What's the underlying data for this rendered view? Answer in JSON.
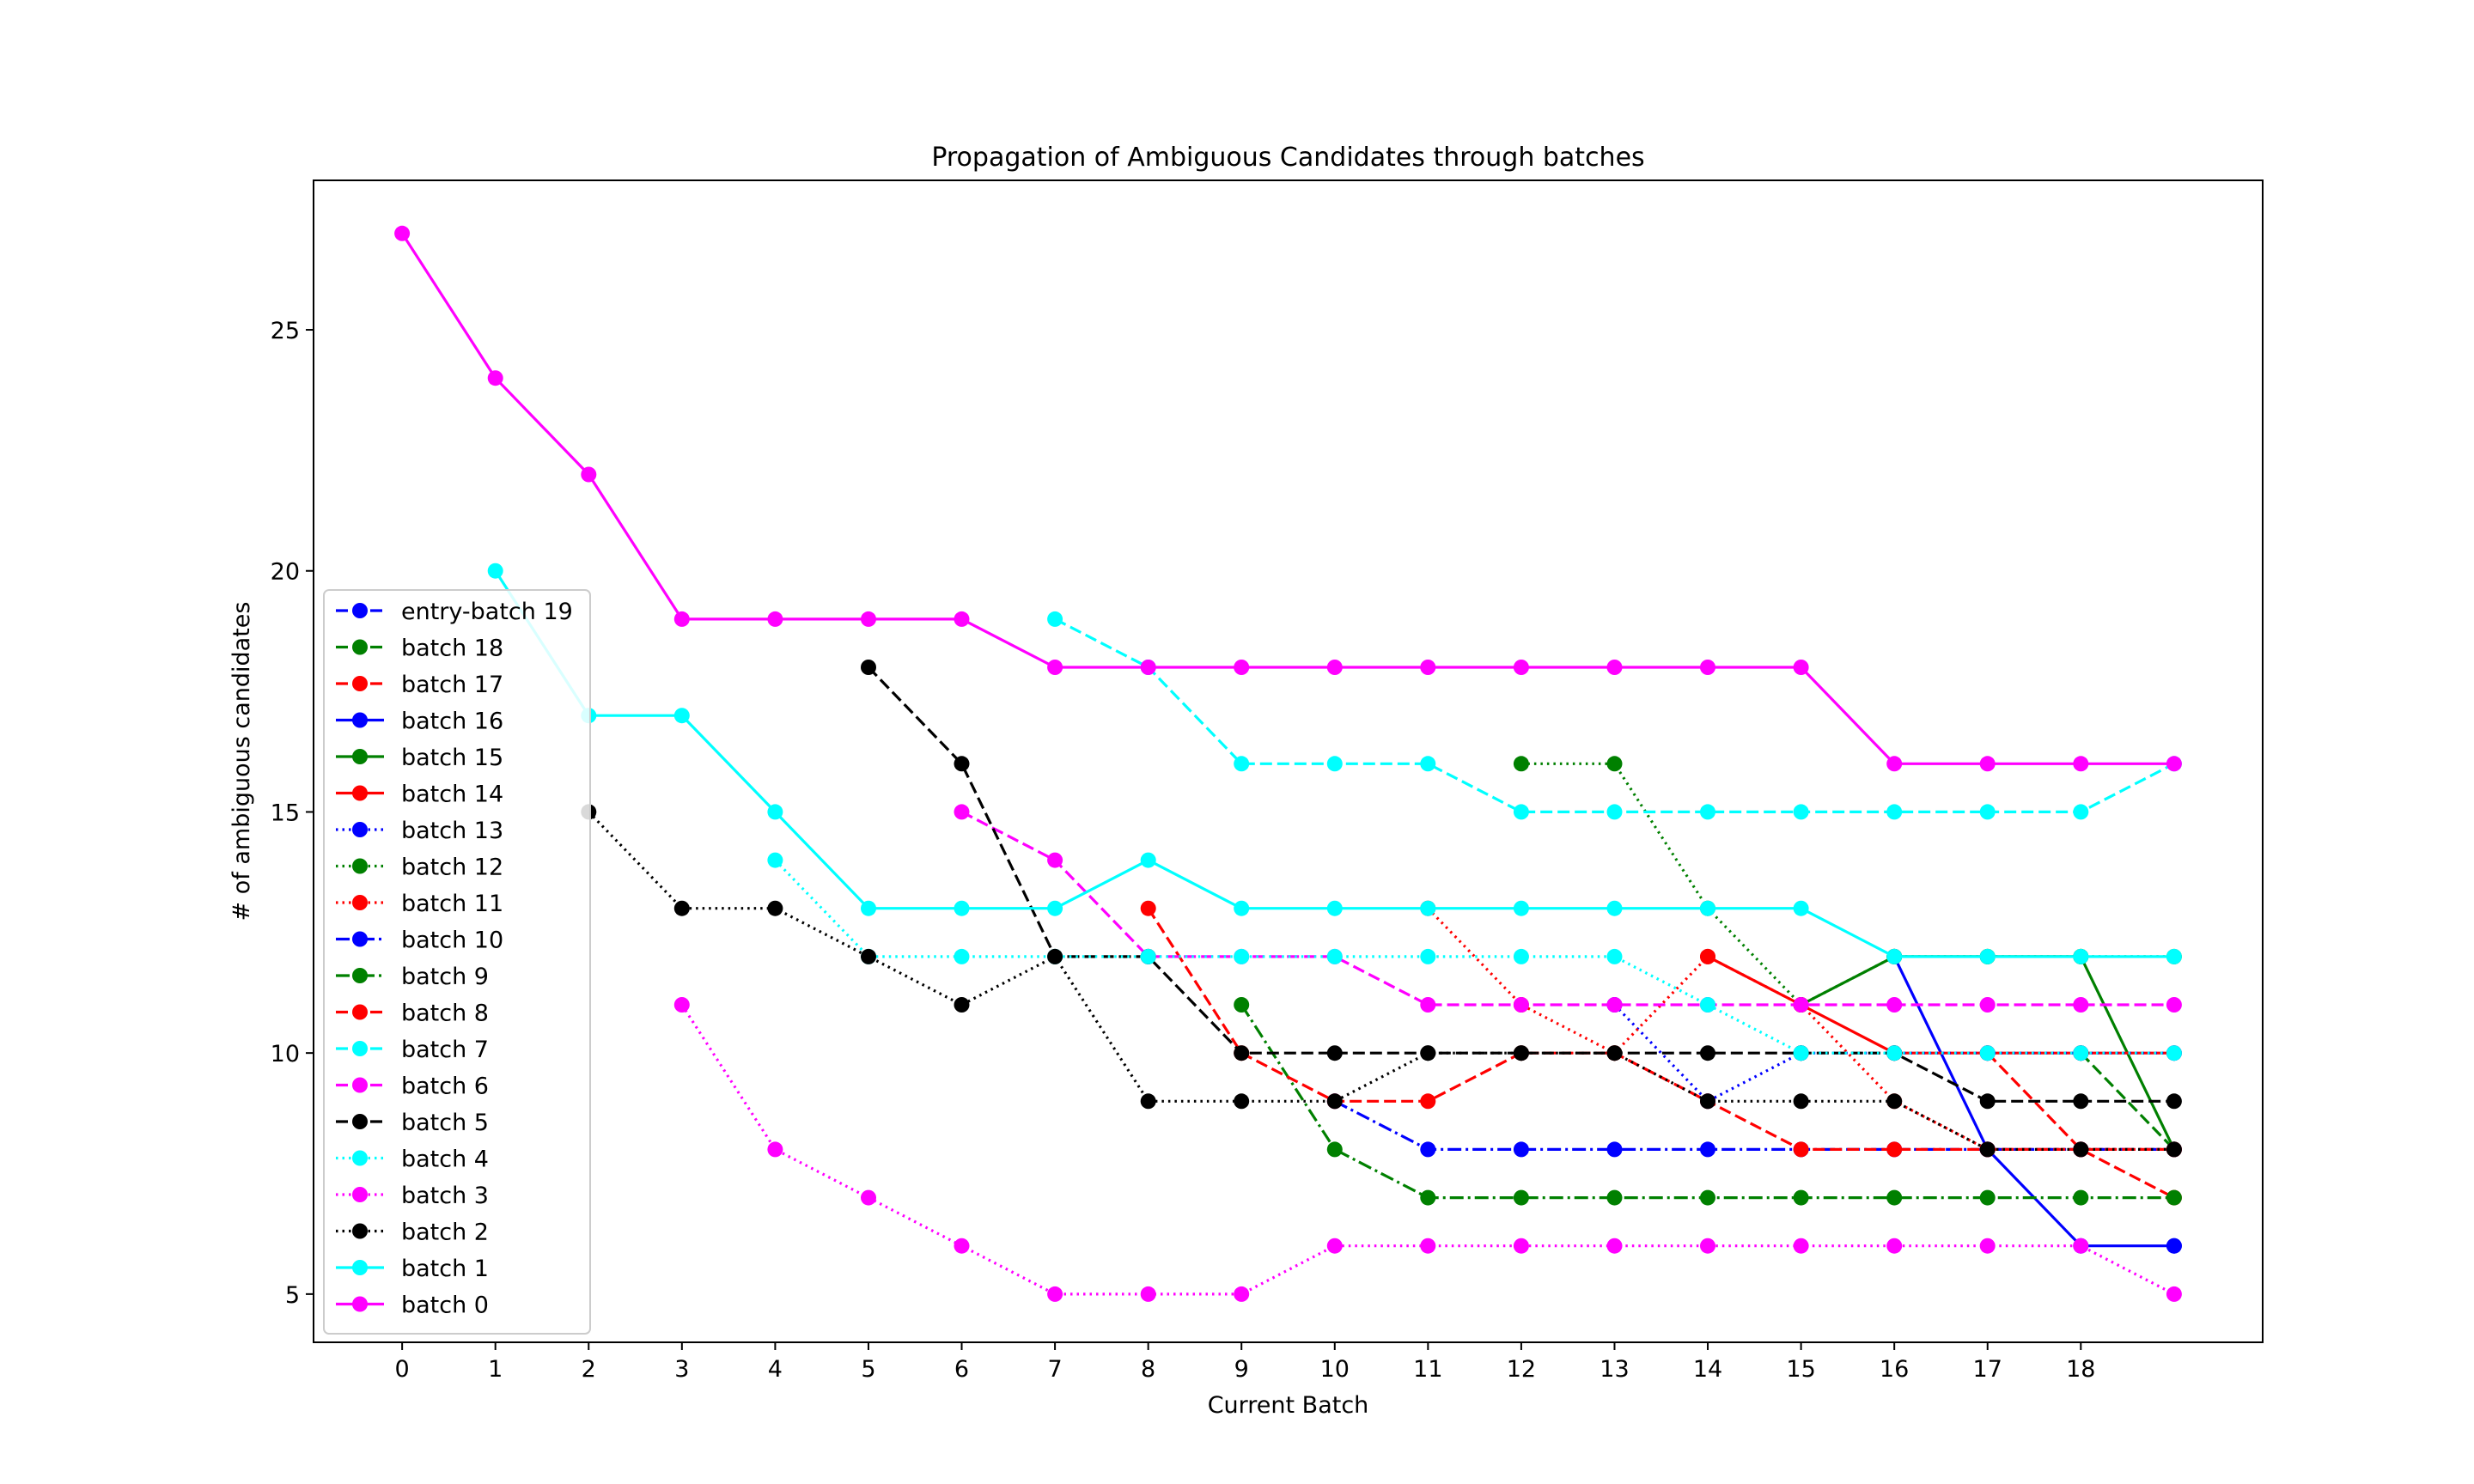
{
  "chart_data": {
    "type": "line",
    "title": "Propagation of Ambiguous Candidates through batches",
    "xlabel": "Current Batch",
    "ylabel": "# of ambiguous candidates",
    "xlim": [
      -0.95,
      19.95
    ],
    "ylim": [
      4.0,
      28.1
    ],
    "xticks": [
      0,
      1,
      2,
      3,
      4,
      5,
      6,
      7,
      8,
      9,
      10,
      11,
      12,
      13,
      14,
      15,
      16,
      17,
      18
    ],
    "yticks": [
      5,
      10,
      15,
      20,
      25
    ],
    "grid": false,
    "legend_position": "center-left",
    "series": [
      {
        "name": "entry-batch 19",
        "color": "#0000ff",
        "style": "dashed",
        "x": [
          19
        ],
        "y": [
          6
        ]
      },
      {
        "name": "batch 18",
        "color": "#008000",
        "style": "dashed",
        "x": [
          18,
          19
        ],
        "y": [
          10,
          8
        ]
      },
      {
        "name": "batch 17",
        "color": "#ff0000",
        "style": "dashed",
        "x": [
          17,
          18,
          19
        ],
        "y": [
          10,
          8,
          7
        ]
      },
      {
        "name": "batch 16",
        "color": "#0000ff",
        "style": "solid",
        "x": [
          16,
          17,
          18,
          19
        ],
        "y": [
          12,
          8,
          6,
          6
        ]
      },
      {
        "name": "batch 15",
        "color": "#008000",
        "style": "solid",
        "x": [
          15,
          16,
          17,
          18,
          19
        ],
        "y": [
          11,
          12,
          12,
          12,
          8
        ]
      },
      {
        "name": "batch 14",
        "color": "#ff0000",
        "style": "solid",
        "x": [
          14,
          15,
          16,
          17,
          18,
          19
        ],
        "y": [
          12,
          11,
          10,
          10,
          10,
          10
        ]
      },
      {
        "name": "batch 13",
        "color": "#0000ff",
        "style": "dotted",
        "x": [
          13,
          14,
          15,
          16,
          17,
          18,
          19
        ],
        "y": [
          11,
          9,
          10,
          10,
          10,
          10,
          10
        ]
      },
      {
        "name": "batch 12",
        "color": "#008000",
        "style": "dotted",
        "x": [
          12,
          13,
          14,
          15,
          16,
          17,
          18,
          19
        ],
        "y": [
          16,
          16,
          13,
          11,
          12,
          12,
          12,
          12
        ]
      },
      {
        "name": "batch 11",
        "color": "#ff0000",
        "style": "dotted",
        "x": [
          11,
          12,
          13,
          14,
          15,
          16,
          17,
          18,
          19
        ],
        "y": [
          13,
          11,
          10,
          12,
          11,
          9,
          8,
          8,
          8
        ]
      },
      {
        "name": "batch 10",
        "color": "#0000ff",
        "style": "dashdot",
        "x": [
          10,
          11,
          12,
          13,
          14,
          15,
          16,
          17,
          18,
          19
        ],
        "y": [
          9,
          8,
          8,
          8,
          8,
          8,
          8,
          8,
          8,
          8
        ]
      },
      {
        "name": "batch 9",
        "color": "#008000",
        "style": "dashdot",
        "x": [
          9,
          10,
          11,
          12,
          13,
          14,
          15,
          16,
          17,
          18,
          19
        ],
        "y": [
          11,
          8,
          7,
          7,
          7,
          7,
          7,
          7,
          7,
          7,
          7
        ]
      },
      {
        "name": "batch 8",
        "color": "#ff0000",
        "style": "dashed",
        "x": [
          8,
          9,
          10,
          11,
          12,
          13,
          14,
          15,
          16,
          17,
          18,
          19
        ],
        "y": [
          13,
          10,
          9,
          9,
          10,
          10,
          9,
          8,
          8,
          8,
          8,
          8
        ]
      },
      {
        "name": "batch 7",
        "color": "#00ffff",
        "style": "dashed",
        "x": [
          7,
          8,
          9,
          10,
          11,
          12,
          13,
          14,
          15,
          16,
          17,
          18,
          19
        ],
        "y": [
          19,
          18,
          16,
          16,
          16,
          15,
          15,
          15,
          15,
          15,
          15,
          15,
          16
        ]
      },
      {
        "name": "batch 6",
        "color": "#ff00ff",
        "style": "dashed",
        "x": [
          6,
          7,
          8,
          9,
          10,
          11,
          12,
          13,
          14,
          15,
          16,
          17,
          18,
          19
        ],
        "y": [
          15,
          14,
          12,
          12,
          12,
          11,
          11,
          11,
          11,
          11,
          11,
          11,
          11,
          11
        ]
      },
      {
        "name": "batch 5",
        "color": "#000000",
        "style": "dashed",
        "x": [
          5,
          6,
          7,
          8,
          9,
          10,
          11,
          12,
          13,
          14,
          15,
          16,
          17,
          18,
          19
        ],
        "y": [
          18,
          16,
          12,
          12,
          10,
          10,
          10,
          10,
          10,
          10,
          10,
          10,
          9,
          9,
          9
        ]
      },
      {
        "name": "batch 4",
        "color": "#00ffff",
        "style": "dotted",
        "x": [
          4,
          5,
          6,
          7,
          8,
          9,
          10,
          11,
          12,
          13,
          14,
          15,
          16,
          17,
          18,
          19
        ],
        "y": [
          14,
          12,
          12,
          12,
          12,
          12,
          12,
          12,
          12,
          12,
          11,
          10,
          10,
          10,
          10,
          10
        ]
      },
      {
        "name": "batch 3",
        "color": "#ff00ff",
        "style": "dotted",
        "x": [
          3,
          4,
          5,
          6,
          7,
          8,
          9,
          10,
          11,
          12,
          13,
          14,
          15,
          16,
          17,
          18,
          19
        ],
        "y": [
          11,
          8,
          7,
          6,
          5,
          5,
          5,
          6,
          6,
          6,
          6,
          6,
          6,
          6,
          6,
          6,
          5
        ]
      },
      {
        "name": "batch 2",
        "color": "#000000",
        "style": "dotted",
        "x": [
          2,
          3,
          4,
          5,
          6,
          7,
          8,
          9,
          10,
          11,
          12,
          13,
          14,
          15,
          16,
          17,
          18,
          19
        ],
        "y": [
          15,
          13,
          13,
          12,
          11,
          12,
          9,
          9,
          9,
          10,
          10,
          10,
          9,
          9,
          9,
          8,
          8,
          8
        ]
      },
      {
        "name": "batch 1",
        "color": "#00ffff",
        "style": "solid",
        "x": [
          1,
          2,
          3,
          4,
          5,
          6,
          7,
          8,
          9,
          10,
          11,
          12,
          13,
          14,
          15,
          16,
          17,
          18,
          19
        ],
        "y": [
          20,
          17,
          17,
          15,
          13,
          13,
          13,
          14,
          13,
          13,
          13,
          13,
          13,
          13,
          13,
          12,
          12,
          12,
          12
        ]
      },
      {
        "name": "batch 0",
        "color": "#ff00ff",
        "style": "solid",
        "x": [
          0,
          1,
          2,
          3,
          4,
          5,
          6,
          7,
          8,
          9,
          10,
          11,
          12,
          13,
          14,
          15,
          16,
          17,
          18,
          19
        ],
        "y": [
          27,
          24,
          22,
          19,
          19,
          19,
          19,
          18,
          18,
          18,
          18,
          18,
          18,
          18,
          18,
          18,
          16,
          16,
          16,
          16
        ]
      }
    ]
  }
}
